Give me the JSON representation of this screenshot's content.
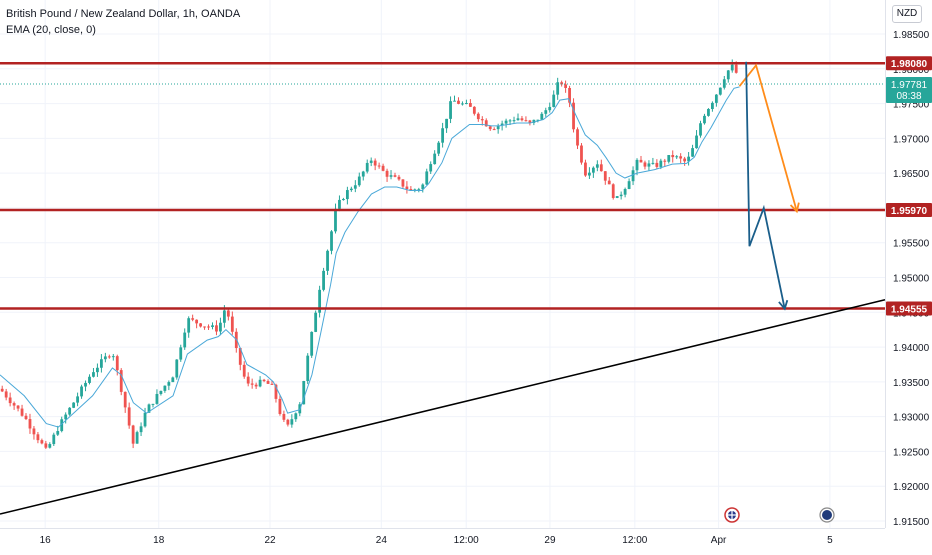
{
  "header": {
    "symbol_title": "British Pound / New Zealand Dollar, 1h, OANDA",
    "indicator": "EMA (20, close, 0)"
  },
  "currency_badge": "NZD",
  "chart_data": {
    "type": "candlestick",
    "title": "British Pound / New Zealand Dollar, 1h, OANDA",
    "currency": "NZD",
    "indicator": "EMA (20, close, 0)",
    "ylim": [
      1.9145,
      1.989
    ],
    "y_ticks": [
      "1.98500",
      "1.98000",
      "1.97500",
      "1.97000",
      "1.96500",
      "1.96000",
      "1.95500",
      "1.95000",
      "1.94500",
      "1.94000",
      "1.93500",
      "1.93000",
      "1.92500",
      "1.92000",
      "1.91500"
    ],
    "x_ticks": [
      "16",
      "18",
      "22",
      "24",
      "12:00",
      "29",
      "12:00",
      "Apr",
      "5"
    ],
    "horizontal_levels": [
      {
        "label": "1.98080",
        "value": 1.9808
      },
      {
        "label": "1.95970",
        "value": 1.9597
      },
      {
        "label": "1.94555",
        "value": 1.94555
      }
    ],
    "current_price": {
      "label": "1.97781",
      "value": 1.97781,
      "countdown": "08:38"
    },
    "price_path": [
      {
        "x": 0,
        "y": 1.934
      },
      {
        "x": 2.2,
        "y": 1.93
      },
      {
        "x": 4.2,
        "y": 1.925
      },
      {
        "x": 5.3,
        "y": 1.9285
      },
      {
        "x": 8.4,
        "y": 1.9365
      },
      {
        "x": 10.2,
        "y": 1.9395
      },
      {
        "x": 11.0,
        "y": 1.934
      },
      {
        "x": 12.1,
        "y": 1.926
      },
      {
        "x": 13.3,
        "y": 1.931
      },
      {
        "x": 15.7,
        "y": 1.936
      },
      {
        "x": 17.0,
        "y": 1.944
      },
      {
        "x": 18.8,
        "y": 1.943
      },
      {
        "x": 19.8,
        "y": 1.9425
      },
      {
        "x": 20.5,
        "y": 1.946
      },
      {
        "x": 21.5,
        "y": 1.939
      },
      {
        "x": 22.4,
        "y": 1.9345
      },
      {
        "x": 24.1,
        "y": 1.935
      },
      {
        "x": 24.8,
        "y": 1.934
      },
      {
        "x": 25.6,
        "y": 1.9295
      },
      {
        "x": 26.1,
        "y": 1.9285
      },
      {
        "x": 27.2,
        "y": 1.932
      },
      {
        "x": 28.3,
        "y": 1.942
      },
      {
        "x": 29.1,
        "y": 1.9495
      },
      {
        "x": 30.0,
        "y": 1.956
      },
      {
        "x": 30.5,
        "y": 1.96
      },
      {
        "x": 31.3,
        "y": 1.962
      },
      {
        "x": 32.5,
        "y": 1.964
      },
      {
        "x": 33.7,
        "y": 1.967
      },
      {
        "x": 34.9,
        "y": 1.965
      },
      {
        "x": 36.0,
        "y": 1.964
      },
      {
        "x": 37.2,
        "y": 1.9625
      },
      {
        "x": 38.3,
        "y": 1.963
      },
      {
        "x": 38.9,
        "y": 1.966
      },
      {
        "x": 40.1,
        "y": 1.971
      },
      {
        "x": 41.0,
        "y": 1.9755
      },
      {
        "x": 42.6,
        "y": 1.9745
      },
      {
        "x": 43.8,
        "y": 1.9725
      },
      {
        "x": 44.6,
        "y": 1.9715
      },
      {
        "x": 45.3,
        "y": 1.972
      },
      {
        "x": 46.9,
        "y": 1.973
      },
      {
        "x": 48.1,
        "y": 1.972
      },
      {
        "x": 49.3,
        "y": 1.9735
      },
      {
        "x": 50.1,
        "y": 1.9755
      },
      {
        "x": 50.8,
        "y": 1.9785
      },
      {
        "x": 51.6,
        "y": 1.976
      },
      {
        "x": 52.2,
        "y": 1.97
      },
      {
        "x": 53.1,
        "y": 1.965
      },
      {
        "x": 54.2,
        "y": 1.9665
      },
      {
        "x": 55.0,
        "y": 1.964
      },
      {
        "x": 55.9,
        "y": 1.961
      },
      {
        "x": 56.7,
        "y": 1.963
      },
      {
        "x": 57.8,
        "y": 1.9665
      },
      {
        "x": 59.4,
        "y": 1.966
      },
      {
        "x": 61.0,
        "y": 1.9675
      },
      {
        "x": 62.3,
        "y": 1.9665
      },
      {
        "x": 63.0,
        "y": 1.969
      },
      {
        "x": 63.7,
        "y": 1.973
      },
      {
        "x": 64.5,
        "y": 1.975
      },
      {
        "x": 65.2,
        "y": 1.977
      },
      {
        "x": 65.9,
        "y": 1.9795
      },
      {
        "x": 66.6,
        "y": 1.9805
      },
      {
        "x": 67.1,
        "y": 1.9778
      }
    ],
    "ema_path": [
      {
        "x": 0,
        "y": 1.936
      },
      {
        "x": 2.2,
        "y": 1.933
      },
      {
        "x": 4.2,
        "y": 1.929
      },
      {
        "x": 5.3,
        "y": 1.9285
      },
      {
        "x": 8.4,
        "y": 1.933
      },
      {
        "x": 10.2,
        "y": 1.937
      },
      {
        "x": 11.0,
        "y": 1.936
      },
      {
        "x": 12.1,
        "y": 1.932
      },
      {
        "x": 13.3,
        "y": 1.9305
      },
      {
        "x": 15.7,
        "y": 1.933
      },
      {
        "x": 17.0,
        "y": 1.939
      },
      {
        "x": 18.8,
        "y": 1.941
      },
      {
        "x": 19.8,
        "y": 1.9415
      },
      {
        "x": 20.5,
        "y": 1.9425
      },
      {
        "x": 21.5,
        "y": 1.941
      },
      {
        "x": 22.4,
        "y": 1.9375
      },
      {
        "x": 24.1,
        "y": 1.936
      },
      {
        "x": 24.8,
        "y": 1.935
      },
      {
        "x": 25.6,
        "y": 1.9325
      },
      {
        "x": 26.1,
        "y": 1.9305
      },
      {
        "x": 27.2,
        "y": 1.931
      },
      {
        "x": 28.3,
        "y": 1.936
      },
      {
        "x": 29.1,
        "y": 1.942
      },
      {
        "x": 30.0,
        "y": 1.949
      },
      {
        "x": 30.5,
        "y": 1.9535
      },
      {
        "x": 31.3,
        "y": 1.9565
      },
      {
        "x": 32.5,
        "y": 1.9595
      },
      {
        "x": 33.7,
        "y": 1.962
      },
      {
        "x": 34.9,
        "y": 1.963
      },
      {
        "x": 36.0,
        "y": 1.963
      },
      {
        "x": 37.2,
        "y": 1.9625
      },
      {
        "x": 38.3,
        "y": 1.9625
      },
      {
        "x": 38.9,
        "y": 1.9635
      },
      {
        "x": 40.1,
        "y": 1.9665
      },
      {
        "x": 41.0,
        "y": 1.97
      },
      {
        "x": 42.6,
        "y": 1.972
      },
      {
        "x": 43.8,
        "y": 1.972
      },
      {
        "x": 44.6,
        "y": 1.9718
      },
      {
        "x": 45.3,
        "y": 1.9718
      },
      {
        "x": 46.9,
        "y": 1.9722
      },
      {
        "x": 48.1,
        "y": 1.9722
      },
      {
        "x": 49.3,
        "y": 1.9727
      },
      {
        "x": 50.1,
        "y": 1.9737
      },
      {
        "x": 50.8,
        "y": 1.9755
      },
      {
        "x": 51.6,
        "y": 1.9757
      },
      {
        "x": 52.2,
        "y": 1.9735
      },
      {
        "x": 53.1,
        "y": 1.9705
      },
      {
        "x": 54.2,
        "y": 1.969
      },
      {
        "x": 55.0,
        "y": 1.9672
      },
      {
        "x": 55.9,
        "y": 1.965
      },
      {
        "x": 56.7,
        "y": 1.9643
      },
      {
        "x": 57.8,
        "y": 1.965
      },
      {
        "x": 59.4,
        "y": 1.9655
      },
      {
        "x": 61.0,
        "y": 1.9663
      },
      {
        "x": 62.3,
        "y": 1.9664
      },
      {
        "x": 63.0,
        "y": 1.9673
      },
      {
        "x": 63.7,
        "y": 1.9695
      },
      {
        "x": 64.5,
        "y": 1.9715
      },
      {
        "x": 65.2,
        "y": 1.9735
      },
      {
        "x": 65.9,
        "y": 1.9755
      },
      {
        "x": 66.6,
        "y": 1.9772
      },
      {
        "x": 67.1,
        "y": 1.9774
      }
    ],
    "trendline": [
      {
        "x": 0,
        "y": 1.916
      },
      {
        "x": 80.3,
        "y": 1.9468
      }
    ],
    "projection_orange": [
      {
        "x": 67.1,
        "y": 1.9775
      },
      {
        "x": 68.6,
        "y": 1.9805
      },
      {
        "x": 72.3,
        "y": 1.9595
      }
    ],
    "projection_blue": [
      {
        "x": 67.7,
        "y": 1.981
      },
      {
        "x": 68.0,
        "y": 1.9545
      },
      {
        "x": 69.3,
        "y": 1.96
      },
      {
        "x": 71.2,
        "y": 1.9455
      }
    ],
    "colors": {
      "bull": "#26a69a",
      "bear": "#ef5350",
      "ema": "#4aa8d8",
      "level": "#b22222",
      "label_bg": "#b22222",
      "price_bg": "#26a69a",
      "trendline": "#000000",
      "orange": "#ff8c1a",
      "blue": "#1a5e8a",
      "grid": "#f0f3fa"
    },
    "legend": "top-left",
    "grid": true
  }
}
